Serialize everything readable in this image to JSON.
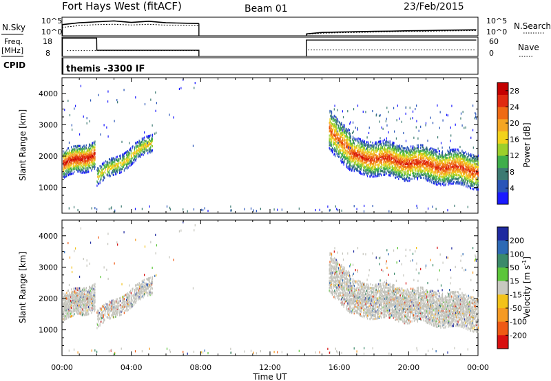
{
  "header": {
    "station": "Fort Hays West (fitACF)",
    "beam": "Beam 01",
    "date": "23/Feb/2015"
  },
  "summary_panels": {
    "nsky": {
      "label": "N.Sky",
      "ticks": [
        "10^5",
        "10^0"
      ]
    },
    "nsearch": {
      "label": "N.Search",
      "ticks": [
        "10^5",
        "10^0"
      ]
    },
    "freq": {
      "label_line1": "Freq.",
      "label_line2": "[MHz]",
      "ticks": [
        "18",
        "8"
      ]
    },
    "nave": {
      "label": "Nave",
      "ticks": [
        "60",
        "0"
      ]
    },
    "cpid": {
      "label": "CPID",
      "value": "themis -3300 IF"
    }
  },
  "axis": {
    "xlabel": "Time UT",
    "xticks": [
      "00:00",
      "04:00",
      "08:00",
      "12:00",
      "16:00",
      "20:00",
      "00:00"
    ],
    "yticks": [
      "1000",
      "2000",
      "3000",
      "4000"
    ],
    "ylabel": "Slant Range [km]"
  },
  "power_colorbar": {
    "label": "Power [dB]",
    "ticks": [
      "4",
      "8",
      "12",
      "16",
      "20",
      "24",
      "28"
    ],
    "colors": [
      "#1a1aff",
      "#2a55b8",
      "#3c7a72",
      "#3fae4a",
      "#9ccf2a",
      "#f2d21a",
      "#f5a623",
      "#ef6a14",
      "#e02a10",
      "#c40000"
    ]
  },
  "velocity_colorbar": {
    "label": "Velocity [m s",
    "label_sup": "-1",
    "label_end": "]",
    "ticks": [
      "200",
      "100",
      "50",
      "15",
      "-15",
      "-50",
      "-100",
      "-200"
    ],
    "colors": [
      "#1f2aa0",
      "#2d6ab5",
      "#3b8a6a",
      "#5cc63a",
      "#c8c8c0",
      "#f2c21a",
      "#f59a23",
      "#ef5a14",
      "#d81010"
    ],
    "ground_scatter_color": "#c4c4bc"
  },
  "chart_data": [
    {
      "type": "line",
      "title": "N.Sky / N.Search",
      "x": [
        0,
        1,
        2,
        3,
        4,
        5,
        6,
        7,
        7.9,
        14.1,
        15,
        16,
        17,
        18,
        19,
        20,
        21,
        22,
        23.9
      ],
      "series": [
        {
          "name": "N.Sky",
          "values": [
            60,
            70,
            75,
            80,
            72,
            78,
            70,
            68,
            66,
            10,
            18,
            20,
            22,
            24,
            25,
            27,
            28,
            30,
            32
          ]
        },
        {
          "name": "N.Search",
          "values": [
            45,
            55,
            60,
            62,
            58,
            62,
            57,
            56,
            55,
            8,
            14,
            16,
            18,
            20,
            22,
            24,
            24,
            26,
            28
          ]
        }
      ],
      "xlim": [
        0,
        24
      ],
      "ylim": [
        0,
        100000
      ]
    },
    {
      "type": "line",
      "title": "Freq. / Nave",
      "x": [
        0,
        2,
        2.01,
        7.9,
        14.1,
        23.9
      ],
      "series": [
        {
          "name": "Freq.",
          "values": [
            17.5,
            17.5,
            11.2,
            11.2,
            16.5,
            16.5
          ]
        },
        {
          "name": "Nave",
          "values": [
            20,
            20,
            18,
            18,
            20,
            20
          ]
        }
      ],
      "xlim": [
        0,
        24
      ],
      "ylim_freq": [
        8,
        18
      ],
      "ylim_nave": [
        0,
        60
      ]
    },
    {
      "type": "heatmap",
      "title": "Power [dB]",
      "xlim": [
        0,
        24
      ],
      "ylim": [
        180,
        4500
      ],
      "zlim": [
        0,
        30
      ],
      "xlabel": "Time UT",
      "ylabel": "Slant Range [km]",
      "regions": [
        {
          "t": [
            0.0,
            1.9
          ],
          "range_center": [
            1700,
            2050
          ],
          "band_width": 900,
          "peak_power": 26
        },
        {
          "t": [
            2.0,
            5.2
          ],
          "range_center": [
            1300,
            2400
          ],
          "band_width": 600,
          "peak_power": 18
        },
        {
          "t": [
            15.4,
            24.0
          ],
          "range_center_start": 2800,
          "range_center_end": 1450,
          "band_width": 1100,
          "peak_power": 24
        }
      ]
    },
    {
      "type": "heatmap",
      "title": "Velocity [m s-1]",
      "xlim": [
        0,
        24
      ],
      "ylim": [
        180,
        4500
      ],
      "zlim": [
        -250,
        250
      ],
      "xlabel": "Time UT",
      "ylabel": "Slant Range [km]",
      "regions": [
        {
          "t": [
            0.0,
            1.9
          ],
          "range": [
            1300,
            2300
          ],
          "dominant": "ground_scatter"
        },
        {
          "t": [
            2.0,
            5.2
          ],
          "range": [
            1200,
            2400
          ],
          "dominant": "ground_scatter"
        },
        {
          "t": [
            15.4,
            24.0
          ],
          "range": [
            1300,
            3200
          ],
          "dominant": "ground_scatter"
        }
      ]
    }
  ]
}
